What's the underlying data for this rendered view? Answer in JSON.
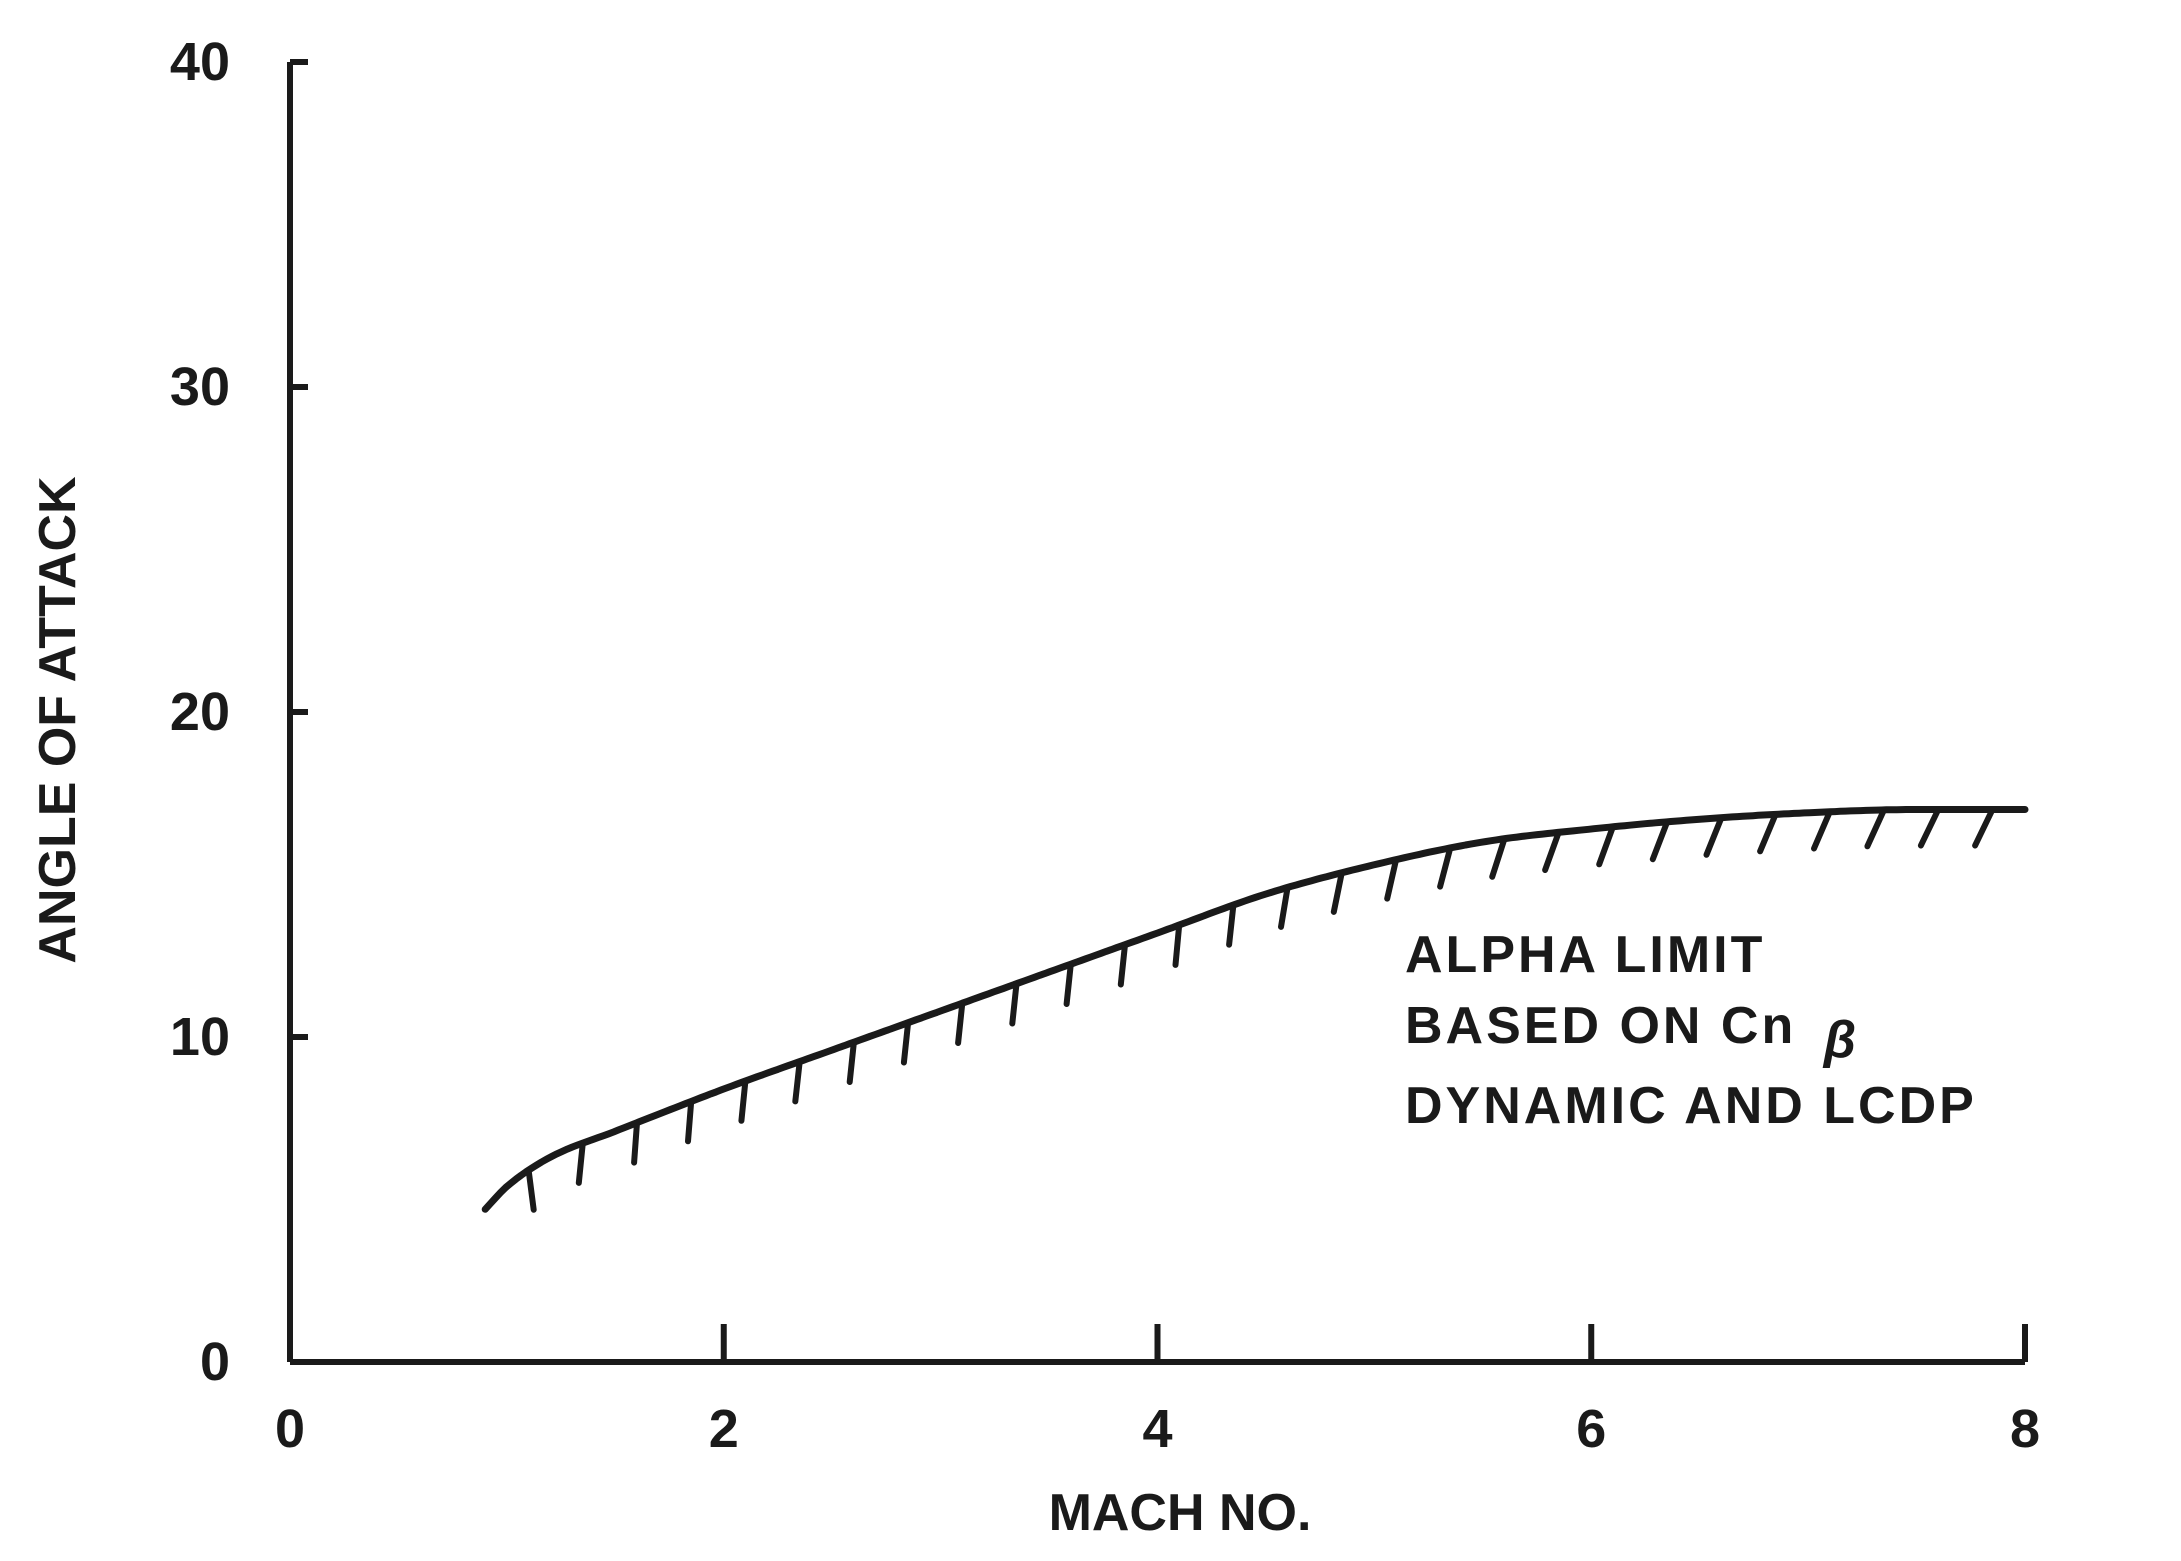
{
  "chart_data": {
    "type": "line",
    "title": "",
    "xlabel": "MACH NO.",
    "ylabel": "ANGLE OF ATTACK",
    "xlim": [
      0,
      8
    ],
    "ylim": [
      0,
      40
    ],
    "xticks": [
      "0",
      "2",
      "4",
      "6",
      "8"
    ],
    "yticks": [
      "0",
      "10",
      "20",
      "30",
      "40"
    ],
    "grid": false,
    "series": [
      {
        "hatched": true,
        "x": [
          0.9,
          1.0,
          1.2,
          1.5,
          2.0,
          2.5,
          3.0,
          3.5,
          4.0,
          4.5,
          5.0,
          5.5,
          6.0,
          6.5,
          7.0,
          7.5,
          8.0
        ],
        "y": [
          4.7,
          5.4,
          6.3,
          7.1,
          8.4,
          9.6,
          10.8,
          12.0,
          13.2,
          14.4,
          15.3,
          16.0,
          16.4,
          16.7,
          16.9,
          17.0,
          17.0
        ]
      }
    ],
    "annotation": {
      "lines": [
        "ALPHA LIMIT",
        "BASED ON Cn",
        "DYNAMIC AND LCDP"
      ],
      "subscript": "β",
      "position": "right-middle"
    },
    "colors": {
      "ink": "#1a1a1a",
      "background": "#ffffff"
    }
  }
}
